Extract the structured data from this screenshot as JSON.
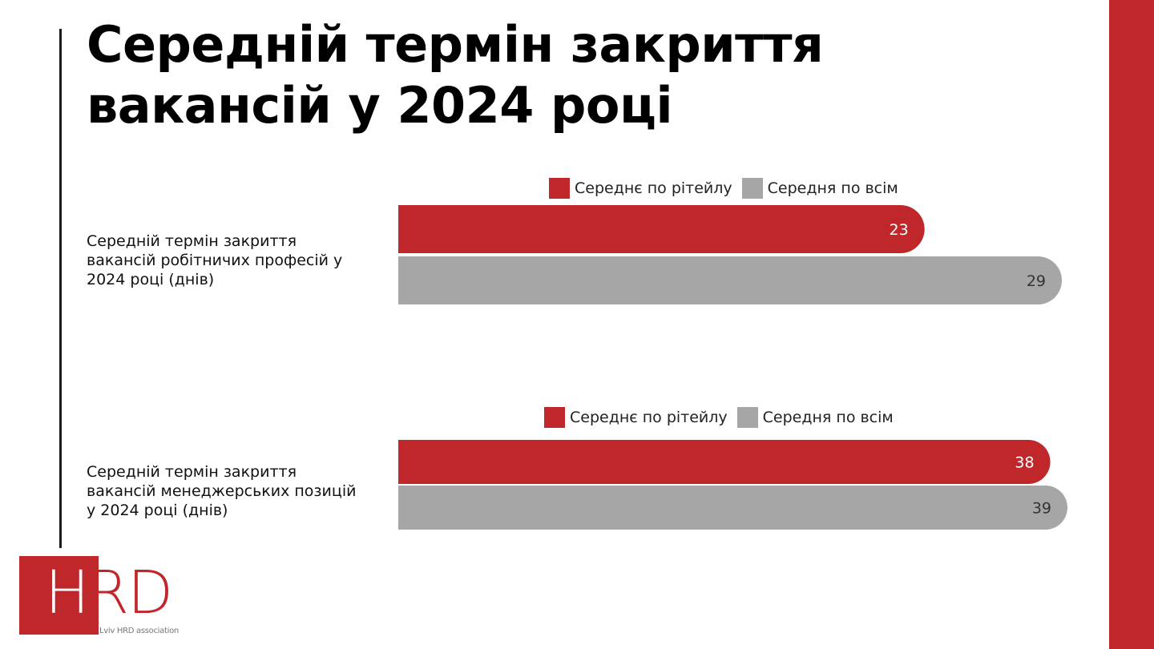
{
  "title_line1": "Середній термін закриття",
  "title_line2": "вакансій у 2024 році",
  "colors": {
    "accent": "#c0272b",
    "retail": "#c0272b",
    "all": "#a6a6a6"
  },
  "logo": {
    "text_h": "H",
    "text_rd": "RD",
    "subtitle": "Lviv HRD association"
  },
  "chart_data": [
    {
      "type": "bar",
      "orientation": "horizontal",
      "category": "Середній термін закриття вакансій робітничих професій у 2024 році (днів)",
      "series": [
        {
          "name": "Середнє по рітейлу",
          "values": [
            23
          ]
        },
        {
          "name": "Середня по всім",
          "values": [
            29
          ]
        }
      ],
      "xlim": [
        0,
        29
      ],
      "legend": "top"
    },
    {
      "type": "bar",
      "orientation": "horizontal",
      "category": "Середній термін закриття вакансій менеджерських позицій у 2024 році (днів)",
      "series": [
        {
          "name": "Середнє по рітейлу",
          "values": [
            38
          ]
        },
        {
          "name": "Середня по всім",
          "values": [
            39
          ]
        }
      ],
      "xlim": [
        0,
        39
      ],
      "legend": "top"
    }
  ]
}
